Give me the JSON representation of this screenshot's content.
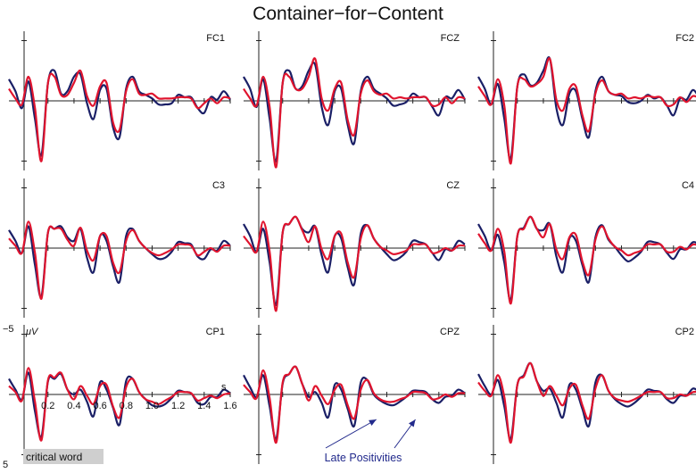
{
  "colors": {
    "condition_a": "#1a1f66",
    "condition_b": "#e0142e",
    "axis": "#222222",
    "label_bg": "#cfcfcf"
  },
  "chart_data": {
    "type": "line",
    "title": "Container−for−Content",
    "x_unit": "s",
    "y_unit": "μV",
    "y_tick_top": "−5",
    "y_tick_bottom": "5",
    "y_axis_inverted": true,
    "xlim": [
      -0.1,
      1.6
    ],
    "ylim_top_to_bottom": [
      -5,
      5
    ],
    "x_tick_labels": [
      "0.2",
      "0.4",
      "0.6",
      "0.8",
      "1.0",
      "1.2",
      "1.4",
      "1.6"
    ],
    "grid": false,
    "legend": "none",
    "event_label": "critical word",
    "annotation": "Late Positivities",
    "x": [
      -0.1,
      -0.05,
      0.0,
      0.05,
      0.1,
      0.15,
      0.2,
      0.25,
      0.3,
      0.35,
      0.4,
      0.45,
      0.5,
      0.55,
      0.6,
      0.65,
      0.7,
      0.75,
      0.8,
      0.85,
      0.9,
      0.95,
      1.0,
      1.05,
      1.1,
      1.15,
      1.2,
      1.25,
      1.3,
      1.35,
      1.4,
      1.45,
      1.5,
      1.55,
      1.6
    ],
    "panels": [
      {
        "label": "FC1",
        "series": [
          {
            "values": [
              -1.8,
              -0.8,
              0.6,
              -1.6,
              1.5,
              4.5,
              -1.5,
              -2.5,
              -0.6,
              -0.8,
              -2.0,
              -2.2,
              0.2,
              1.5,
              -0.9,
              -1.0,
              2.2,
              3.0,
              -1.0,
              -2.0,
              -0.8,
              -0.5,
              -0.2,
              0.3,
              0.3,
              0.2,
              -0.5,
              -0.3,
              -0.3,
              0.6,
              1.0,
              -0.3,
              -0.1,
              -0.8,
              -0.1
            ]
          },
          {
            "values": [
              -1.0,
              -0.2,
              0.3,
              -2.0,
              0.6,
              5.0,
              -1.5,
              -2.0,
              -0.5,
              -0.5,
              -1.5,
              -2.5,
              -0.4,
              0.4,
              -1.2,
              -1.5,
              1.8,
              2.4,
              -0.8,
              -1.8,
              -0.6,
              -0.5,
              -0.6,
              -0.2,
              -0.2,
              -0.2,
              -0.3,
              -0.3,
              -0.2,
              0.6,
              0.2,
              -0.2,
              0.2,
              -0.3,
              -0.2
            ]
          }
        ]
      },
      {
        "label": "FCZ",
        "series": [
          {
            "values": [
              -2.0,
              -1.0,
              0.5,
              -1.8,
              1.5,
              5.0,
              -1.5,
              -2.5,
              -1.0,
              -1.2,
              -2.5,
              -3.0,
              0.5,
              2.0,
              -0.8,
              -1.0,
              2.0,
              3.5,
              -0.8,
              -2.0,
              -1.0,
              -0.6,
              -0.2,
              0.4,
              0.3,
              0.1,
              -0.6,
              -0.3,
              -0.3,
              0.5,
              1.2,
              -0.3,
              -0.2,
              -0.9,
              -0.1
            ]
          },
          {
            "values": [
              -1.0,
              -0.2,
              0.4,
              -2.0,
              0.5,
              5.5,
              -1.5,
              -2.0,
              -1.0,
              -1.0,
              -2.0,
              -3.5,
              -0.2,
              0.8,
              -1.0,
              -1.5,
              1.6,
              2.8,
              -0.6,
              -1.7,
              -0.8,
              -0.5,
              -0.6,
              -0.2,
              -0.3,
              -0.2,
              -0.3,
              -0.3,
              -0.3,
              0.4,
              0.3,
              -0.3,
              0.2,
              -0.3,
              -0.2
            ]
          }
        ]
      },
      {
        "label": "FC2",
        "series": [
          {
            "values": [
              -2.0,
              -1.0,
              0.3,
              -1.4,
              1.5,
              4.8,
              -1.2,
              -2.2,
              -1.3,
              -1.5,
              -2.5,
              -3.5,
              0.6,
              2.0,
              -0.6,
              -0.8,
              1.5,
              3.0,
              -0.8,
              -2.0,
              -0.8,
              -0.5,
              -0.4,
              0.1,
              0.2,
              0.0,
              -0.5,
              -0.2,
              -0.3,
              0.4,
              1.2,
              -0.2,
              -0.1,
              -0.9,
              -0.2
            ]
          },
          {
            "values": [
              -1.2,
              -0.4,
              0.3,
              -1.8,
              0.4,
              5.2,
              -1.2,
              -1.8,
              -1.2,
              -1.4,
              -2.0,
              -3.5,
              -0.1,
              0.8,
              -1.0,
              -1.2,
              1.2,
              2.5,
              -0.6,
              -1.7,
              -0.8,
              -0.5,
              -0.6,
              -0.2,
              -0.3,
              -0.2,
              -0.4,
              -0.3,
              -0.3,
              0.4,
              0.3,
              -0.3,
              0.1,
              -0.4,
              -0.2
            ]
          }
        ]
      },
      {
        "label": "C3",
        "series": [
          {
            "values": [
              -1.5,
              -0.6,
              0.4,
              -1.8,
              1.4,
              4.0,
              -1.3,
              -1.6,
              -1.8,
              -0.9,
              -0.6,
              -1.6,
              0.8,
              2.0,
              -1.0,
              -0.6,
              1.5,
              2.8,
              -1.0,
              -1.6,
              -0.6,
              0.0,
              0.5,
              0.9,
              0.8,
              0.3,
              -0.5,
              -0.4,
              -0.3,
              0.7,
              0.9,
              0.1,
              0.2,
              -0.6,
              -0.2
            ]
          },
          {
            "values": [
              -0.8,
              -0.2,
              0.4,
              -2.2,
              0.4,
              4.2,
              -1.3,
              -1.6,
              -1.6,
              -0.7,
              -0.2,
              -1.7,
              0.2,
              1.0,
              -1.0,
              -1.0,
              1.2,
              2.0,
              -0.6,
              -1.5,
              -0.6,
              0.0,
              0.4,
              0.6,
              0.4,
              0.1,
              -0.3,
              -0.3,
              -0.2,
              0.6,
              0.3,
              0.0,
              0.3,
              -0.2,
              -0.2
            ]
          }
        ]
      },
      {
        "label": "CZ",
        "series": [
          {
            "values": [
              -2.0,
              -1.0,
              0.3,
              -1.6,
              1.2,
              4.7,
              -1.3,
              -2.0,
              -2.6,
              -1.6,
              -1.3,
              -1.8,
              0.6,
              2.0,
              -1.0,
              -0.8,
              1.6,
              3.0,
              -1.2,
              -1.9,
              -0.8,
              -0.1,
              0.5,
              1.0,
              0.8,
              0.3,
              -0.6,
              -0.5,
              -0.3,
              0.4,
              1.0,
              0.1,
              0.2,
              -0.6,
              -0.3
            ]
          },
          {
            "values": [
              -1.0,
              -0.3,
              0.3,
              -2.2,
              0.3,
              5.2,
              -1.3,
              -2.0,
              -2.6,
              -1.5,
              -0.5,
              -1.8,
              0.1,
              0.9,
              -1.0,
              -1.2,
              1.2,
              2.4,
              -0.8,
              -1.9,
              -0.8,
              -0.1,
              0.2,
              0.5,
              0.4,
              0.2,
              -0.3,
              -0.3,
              -0.3,
              0.4,
              0.3,
              0.0,
              0.2,
              -0.2,
              -0.2
            ]
          }
        ]
      },
      {
        "label": "C4",
        "series": [
          {
            "values": [
              -2.0,
              -1.0,
              0.2,
              -1.1,
              1.2,
              4.3,
              -1.0,
              -1.7,
              -2.6,
              -1.6,
              -1.5,
              -2.0,
              0.7,
              2.0,
              -0.8,
              -0.6,
              1.4,
              2.8,
              -0.9,
              -1.9,
              -0.7,
              -0.1,
              0.6,
              1.1,
              0.8,
              0.3,
              -0.5,
              -0.5,
              -0.3,
              0.4,
              0.9,
              0.1,
              0.1,
              -0.5,
              -0.3
            ]
          },
          {
            "values": [
              -1.2,
              -0.4,
              0.2,
              -1.6,
              0.3,
              4.6,
              -1.0,
              -1.6,
              -2.6,
              -1.6,
              -0.9,
              -2.0,
              0.1,
              0.9,
              -0.9,
              -1.1,
              1.1,
              2.2,
              -0.7,
              -1.8,
              -0.8,
              -0.1,
              0.2,
              0.6,
              0.4,
              0.2,
              -0.3,
              -0.3,
              -0.3,
              0.3,
              0.3,
              -0.1,
              0.1,
              -0.3,
              -0.2
            ]
          }
        ]
      },
      {
        "label": "CP1",
        "series": [
          {
            "values": [
              -1.3,
              -0.4,
              0.4,
              -1.8,
              1.4,
              3.5,
              -1.1,
              -1.3,
              -1.7,
              -0.4,
              0.0,
              -0.4,
              0.6,
              1.8,
              -1.0,
              -0.4,
              1.1,
              2.5,
              -1.1,
              -1.3,
              -0.2,
              0.4,
              0.9,
              1.0,
              0.8,
              0.3,
              -0.3,
              -0.2,
              -0.1,
              0.7,
              0.8,
              0.2,
              0.2,
              -0.4,
              -0.1
            ]
          },
          {
            "values": [
              -0.7,
              -0.2,
              0.5,
              -2.2,
              0.6,
              3.8,
              -1.2,
              -1.4,
              -1.8,
              -0.4,
              0.4,
              -0.7,
              0.1,
              0.8,
              -0.7,
              -0.8,
              1.0,
              1.9,
              -0.6,
              -1.3,
              -0.2,
              0.4,
              0.6,
              0.8,
              0.5,
              0.2,
              -0.2,
              -0.2,
              -0.1,
              0.5,
              0.3,
              0.1,
              0.3,
              0.0,
              -0.1
            ]
          }
        ]
      },
      {
        "label": "CPZ",
        "series": [
          {
            "values": [
              -1.6,
              -0.6,
              0.2,
              -1.6,
              1.0,
              3.7,
              -0.9,
              -1.7,
              -2.3,
              -0.9,
              0.2,
              -0.2,
              0.7,
              1.9,
              -0.8,
              -0.4,
              1.2,
              2.6,
              -1.0,
              -1.2,
              0.0,
              0.5,
              0.8,
              0.9,
              0.6,
              0.2,
              -0.3,
              -0.3,
              -0.2,
              0.4,
              0.7,
              0.2,
              0.1,
              -0.4,
              -0.1
            ]
          },
          {
            "values": [
              -0.8,
              -0.2,
              0.3,
              -2.0,
              0.3,
              4.0,
              -1.0,
              -1.7,
              -2.3,
              -0.9,
              0.5,
              -0.7,
              0.1,
              0.8,
              -0.4,
              -0.8,
              0.9,
              2.0,
              -0.4,
              -1.2,
              -0.1,
              0.4,
              0.6,
              0.6,
              0.4,
              0.2,
              -0.2,
              -0.2,
              -0.1,
              0.4,
              0.3,
              0.0,
              0.2,
              -0.1,
              -0.1
            ]
          }
        ]
      },
      {
        "label": "CP2",
        "series": [
          {
            "values": [
              -1.7,
              -0.7,
              0.0,
              -1.2,
              1.0,
              3.7,
              -0.8,
              -1.6,
              -2.6,
              -1.1,
              -0.3,
              -0.5,
              0.7,
              1.9,
              -0.8,
              -0.4,
              1.2,
              2.6,
              -1.0,
              -1.6,
              -0.3,
              0.4,
              0.8,
              1.0,
              0.7,
              0.2,
              -0.4,
              -0.3,
              -0.2,
              0.4,
              0.7,
              0.1,
              0.1,
              -0.5,
              -0.2
            ]
          },
          {
            "values": [
              -1.0,
              -0.3,
              0.1,
              -1.6,
              0.2,
              4.0,
              -0.8,
              -1.5,
              -2.6,
              -1.1,
              0.1,
              -0.7,
              0.1,
              0.9,
              -0.5,
              -0.8,
              0.9,
              2.0,
              -0.5,
              -1.6,
              -0.3,
              0.3,
              0.5,
              0.6,
              0.4,
              0.1,
              -0.2,
              -0.2,
              -0.2,
              0.3,
              0.3,
              0.0,
              0.1,
              -0.2,
              -0.2
            ]
          }
        ]
      }
    ]
  }
}
